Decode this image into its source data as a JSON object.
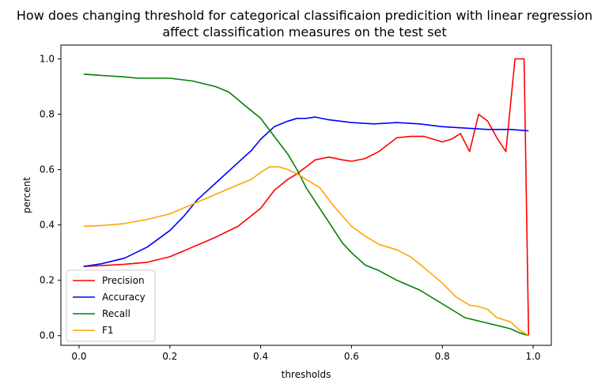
{
  "chart_data": {
    "type": "line",
    "title": [
      "How does changing threshold for categorical classificaion predicition with linear regression",
      "affect classification measures on the test set"
    ],
    "xlabel": "thresholds",
    "ylabel": "percent",
    "xlim": [
      -0.04,
      1.04
    ],
    "ylim": [
      -0.035,
      1.05
    ],
    "xticks": [
      0.0,
      0.2,
      0.4,
      0.6,
      0.8,
      1.0
    ],
    "xtick_labels": [
      "0.0",
      "0.2",
      "0.4",
      "0.6",
      "0.8",
      "1.0"
    ],
    "yticks": [
      0.0,
      0.2,
      0.4,
      0.6,
      0.8,
      1.0
    ],
    "ytick_labels": [
      "0.0",
      "0.2",
      "0.4",
      "0.6",
      "0.8",
      "1.0"
    ],
    "grid": false,
    "legend_position": "lower-left",
    "series": [
      {
        "name": "Precision",
        "color": "#ff0000",
        "x": [
          0.01,
          0.05,
          0.1,
          0.15,
          0.2,
          0.25,
          0.3,
          0.35,
          0.4,
          0.43,
          0.46,
          0.48,
          0.5,
          0.52,
          0.55,
          0.58,
          0.6,
          0.63,
          0.66,
          0.7,
          0.73,
          0.76,
          0.8,
          0.82,
          0.84,
          0.86,
          0.88,
          0.9,
          0.92,
          0.94,
          0.96,
          0.98,
          0.99
        ],
        "y": [
          0.25,
          0.253,
          0.258,
          0.265,
          0.285,
          0.32,
          0.355,
          0.395,
          0.46,
          0.525,
          0.565,
          0.585,
          0.61,
          0.635,
          0.645,
          0.635,
          0.63,
          0.64,
          0.665,
          0.715,
          0.72,
          0.72,
          0.7,
          0.71,
          0.73,
          0.665,
          0.8,
          0.775,
          0.715,
          0.665,
          1.0,
          1.0,
          0.0
        ]
      },
      {
        "name": "Accuracy",
        "color": "#0000ff",
        "x": [
          0.01,
          0.05,
          0.1,
          0.15,
          0.2,
          0.23,
          0.26,
          0.3,
          0.35,
          0.38,
          0.4,
          0.43,
          0.46,
          0.48,
          0.5,
          0.52,
          0.55,
          0.6,
          0.65,
          0.7,
          0.75,
          0.8,
          0.85,
          0.9,
          0.95,
          0.99
        ],
        "y": [
          0.25,
          0.26,
          0.28,
          0.32,
          0.38,
          0.43,
          0.49,
          0.55,
          0.625,
          0.67,
          0.71,
          0.755,
          0.775,
          0.785,
          0.785,
          0.79,
          0.78,
          0.77,
          0.765,
          0.77,
          0.765,
          0.755,
          0.75,
          0.745,
          0.745,
          0.74
        ]
      },
      {
        "name": "Recall",
        "color": "#008000",
        "x": [
          0.01,
          0.05,
          0.1,
          0.13,
          0.2,
          0.25,
          0.3,
          0.33,
          0.37,
          0.4,
          0.43,
          0.46,
          0.48,
          0.5,
          0.52,
          0.55,
          0.58,
          0.6,
          0.63,
          0.66,
          0.7,
          0.75,
          0.8,
          0.85,
          0.9,
          0.95,
          0.97,
          0.99
        ],
        "y": [
          0.945,
          0.94,
          0.935,
          0.93,
          0.93,
          0.92,
          0.9,
          0.88,
          0.825,
          0.785,
          0.72,
          0.655,
          0.6,
          0.535,
          0.485,
          0.41,
          0.335,
          0.3,
          0.255,
          0.235,
          0.2,
          0.165,
          0.115,
          0.065,
          0.045,
          0.025,
          0.01,
          0.0
        ]
      },
      {
        "name": "F1",
        "color": "#ffa500",
        "x": [
          0.01,
          0.05,
          0.1,
          0.15,
          0.2,
          0.25,
          0.3,
          0.35,
          0.38,
          0.4,
          0.42,
          0.44,
          0.46,
          0.48,
          0.5,
          0.53,
          0.56,
          0.6,
          0.63,
          0.66,
          0.7,
          0.73,
          0.76,
          0.8,
          0.83,
          0.86,
          0.88,
          0.9,
          0.92,
          0.95,
          0.97,
          0.99
        ],
        "y": [
          0.395,
          0.398,
          0.405,
          0.42,
          0.44,
          0.475,
          0.51,
          0.545,
          0.565,
          0.59,
          0.61,
          0.61,
          0.6,
          0.585,
          0.565,
          0.535,
          0.47,
          0.395,
          0.36,
          0.33,
          0.31,
          0.285,
          0.245,
          0.19,
          0.14,
          0.11,
          0.105,
          0.095,
          0.065,
          0.05,
          0.02,
          0.0
        ]
      }
    ]
  }
}
